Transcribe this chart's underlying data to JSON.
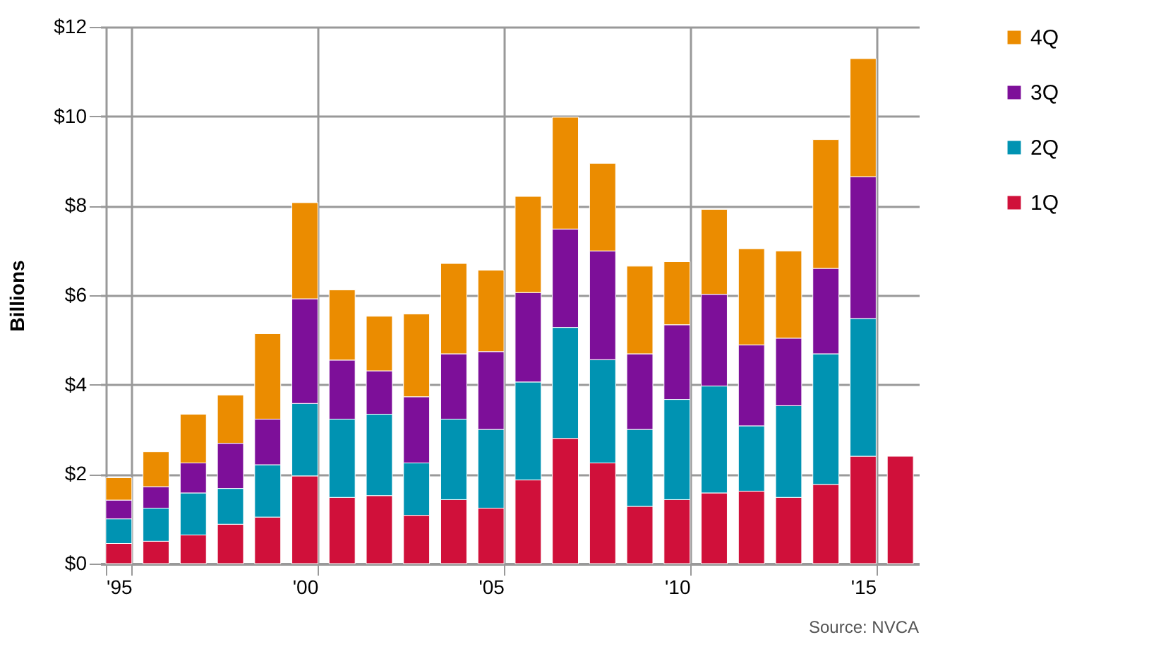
{
  "chart_data": {
    "type": "bar",
    "stacked": true,
    "ylabel": "Billions",
    "categories": [
      "'95",
      null,
      null,
      null,
      null,
      "'00",
      null,
      null,
      null,
      null,
      "'05",
      null,
      null,
      null,
      null,
      "'10",
      null,
      null,
      null,
      null,
      "'15",
      null
    ],
    "series": [
      {
        "name": "1Q",
        "color": "#d0103a",
        "values": [
          0.45,
          0.5,
          0.64,
          0.88,
          1.04,
          1.96,
          1.48,
          1.52,
          1.08,
          1.43,
          1.24,
          1.87,
          2.8,
          2.25,
          1.28,
          1.43,
          1.58,
          1.62,
          1.48,
          1.77,
          2.4,
          2.4
        ]
      },
      {
        "name": "2Q",
        "color": "#0093b2",
        "values": [
          0.55,
          0.74,
          0.94,
          0.8,
          1.17,
          1.62,
          1.75,
          1.82,
          1.17,
          1.8,
          1.76,
          2.19,
          2.48,
          2.31,
          1.72,
          2.24,
          2.39,
          1.46,
          2.05,
          2.92,
          3.08,
          null
        ]
      },
      {
        "name": "3Q",
        "color": "#7d0f99",
        "values": [
          0.42,
          0.48,
          0.67,
          1.01,
          1.02,
          2.34,
          1.32,
          0.97,
          1.48,
          1.46,
          1.74,
          2.0,
          2.2,
          2.43,
          1.69,
          1.67,
          2.05,
          1.81,
          1.51,
          1.91,
          3.17,
          null
        ]
      },
      {
        "name": "4Q",
        "color": "#eb8c00",
        "values": [
          0.5,
          0.78,
          1.09,
          1.08,
          1.91,
          2.15,
          1.57,
          1.22,
          1.85,
          2.02,
          1.82,
          2.15,
          2.5,
          1.96,
          1.96,
          1.41,
          1.9,
          2.15,
          1.95,
          2.88,
          2.64,
          null
        ]
      }
    ],
    "ylim": [
      0,
      12
    ],
    "yticks": [
      {
        "value": 0,
        "label": "$0"
      },
      {
        "value": 2,
        "label": "$2"
      },
      {
        "value": 4,
        "label": "$4"
      },
      {
        "value": 6,
        "label": "$6"
      },
      {
        "value": 8,
        "label": "$8"
      },
      {
        "value": 10,
        "label": "$10"
      },
      {
        "value": 12,
        "label": "$12"
      }
    ],
    "grid": true,
    "legend": "right",
    "annotations": [
      "Source: NVCA"
    ]
  }
}
